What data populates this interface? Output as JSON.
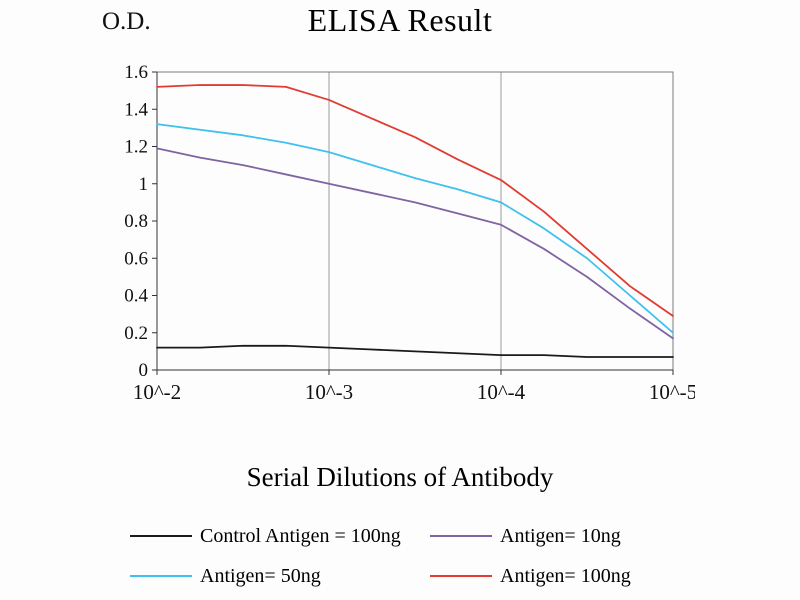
{
  "chart": {
    "title": "ELISA Result",
    "od_label": "O.D.",
    "xlabel": "Serial Dilutions of Antibody"
  },
  "chart_data": {
    "type": "line",
    "title": "ELISA Result",
    "ylabel": "O.D.",
    "xlabel": "Serial Dilutions of Antibody",
    "x_ticks": [
      "10^-2",
      "10^-3",
      "10^-4",
      "10^-5"
    ],
    "y_ticks": [
      "0",
      "0.2",
      "0.4",
      "0.6",
      "0.8",
      "1",
      "1.2",
      "1.4",
      "1.6"
    ],
    "ylim": [
      0,
      1.6
    ],
    "x_scale": "log decades, equal spacing",
    "grid": "vertical gridlines at each decade only",
    "legend_position": "below chart, 2 columns",
    "x": [
      0,
      0.25,
      0.5,
      0.75,
      1,
      1.25,
      1.5,
      1.75,
      2,
      2.25,
      2.5,
      2.75,
      3
    ],
    "series": [
      {
        "name": "Control Antigen = 100ng",
        "color": "#1a1a1a",
        "values": [
          0.12,
          0.12,
          0.13,
          0.13,
          0.12,
          0.11,
          0.1,
          0.09,
          0.08,
          0.08,
          0.07,
          0.07,
          0.07
        ]
      },
      {
        "name": "Antigen= 10ng",
        "color": "#8064A2",
        "values": [
          1.19,
          1.14,
          1.1,
          1.05,
          1.0,
          0.95,
          0.9,
          0.84,
          0.78,
          0.65,
          0.5,
          0.33,
          0.17
        ]
      },
      {
        "name": "Antigen= 50ng",
        "color": "#3EC1EC",
        "values": [
          1.32,
          1.29,
          1.26,
          1.22,
          1.17,
          1.1,
          1.03,
          0.97,
          0.9,
          0.76,
          0.6,
          0.4,
          0.2
        ]
      },
      {
        "name": "Antigen= 100ng",
        "color": "#E03C31",
        "values": [
          1.52,
          1.53,
          1.53,
          1.52,
          1.45,
          1.35,
          1.25,
          1.13,
          1.02,
          0.85,
          0.65,
          0.45,
          0.29
        ]
      }
    ]
  }
}
